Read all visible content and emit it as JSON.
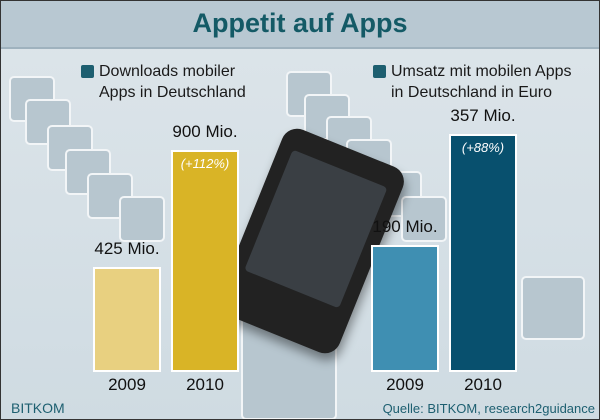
{
  "title": "Appetit auf Apps",
  "chart_data": [
    {
      "type": "bar",
      "title": "Downloads mobiler Apps in Deutschland",
      "categories": [
        "2009",
        "2010"
      ],
      "values": [
        425,
        900
      ],
      "data_labels": [
        "425 Mio.",
        "900 Mio."
      ],
      "annotations": [
        "",
        "(+112%)"
      ],
      "colors": [
        "#e8d080",
        "#d9b426"
      ],
      "unit": "Mio."
    },
    {
      "type": "bar",
      "title": "Umsatz mit mobilen Apps in Deutschland in Euro",
      "categories": [
        "2009",
        "2010"
      ],
      "values": [
        190,
        357
      ],
      "data_labels": [
        "190 Mio.",
        "357 Mio."
      ],
      "annotations": [
        "",
        "(+88%)"
      ],
      "colors": [
        "#3f8fb2",
        "#08506e"
      ],
      "unit": "Mio."
    }
  ],
  "logo": "BITKOM",
  "source": "Quelle: BITKOM, research2guidance"
}
